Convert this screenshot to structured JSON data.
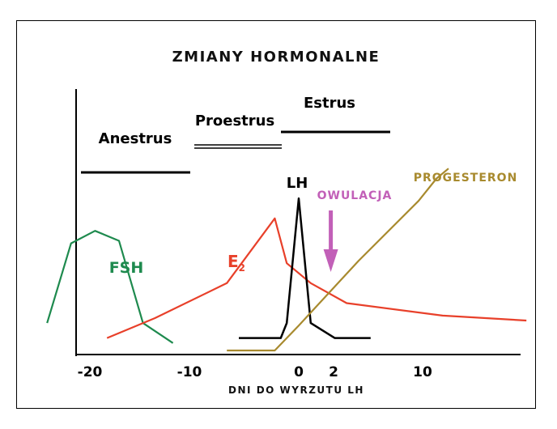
{
  "chart_data": {
    "type": "line",
    "title": "ZMIANY HORMONALNE",
    "xlabel": "DNI DO WYRZUTU LH",
    "ylabel": "",
    "xlim": [
      -21,
      19
    ],
    "ylim": [
      0,
      10
    ],
    "x_ticks": [
      {
        "value": -20,
        "label": "-20"
      },
      {
        "value": -10,
        "label": "-10"
      },
      {
        "value": 0,
        "label": "0"
      },
      {
        "value": 2,
        "label": "2"
      },
      {
        "value": 10,
        "label": "10"
      }
    ],
    "grid": false,
    "legend": "none",
    "phases": [
      {
        "name": "Anestrus",
        "x_start": -21,
        "x_end": -11,
        "style": "single"
      },
      {
        "name": "Proestrus",
        "x_start": -10,
        "x_end": -2,
        "style": "double"
      },
      {
        "name": "Estrus",
        "x_start": -2,
        "x_end": 8,
        "style": "single"
      }
    ],
    "series": [
      {
        "name": "FSH",
        "color": "#1e8a4e",
        "x": [
          -21,
          -19,
          -17,
          -15,
          -13,
          -10.5
        ],
        "y": [
          1.1,
          4.3,
          4.8,
          4.4,
          1.1,
          0.3
        ]
      },
      {
        "name": "E2",
        "color": "#e8402a",
        "x": [
          -16,
          -12,
          -6,
          -2,
          -1,
          1,
          4,
          12,
          19
        ],
        "y": [
          0.5,
          1.3,
          2.7,
          5.3,
          3.5,
          2.7,
          1.9,
          1.4,
          1.2
        ]
      },
      {
        "name": "LH",
        "color": "#000000",
        "x": [
          -5,
          -1.5,
          -1,
          0,
          1,
          3,
          6
        ],
        "y": [
          0.5,
          0.5,
          1.1,
          6.1,
          1.1,
          0.5,
          0.5
        ]
      },
      {
        "name": "PROGESTERON",
        "color": "#a88a2e",
        "x": [
          -6,
          -2,
          0,
          5,
          10,
          11.5,
          12.5
        ],
        "y": [
          0,
          0,
          1.0,
          3.6,
          6.0,
          6.9,
          7.3
        ]
      }
    ],
    "annotations": [
      {
        "text": "OWULACJA",
        "x": 2,
        "color": "#c260b8",
        "type": "arrow-down"
      }
    ]
  }
}
